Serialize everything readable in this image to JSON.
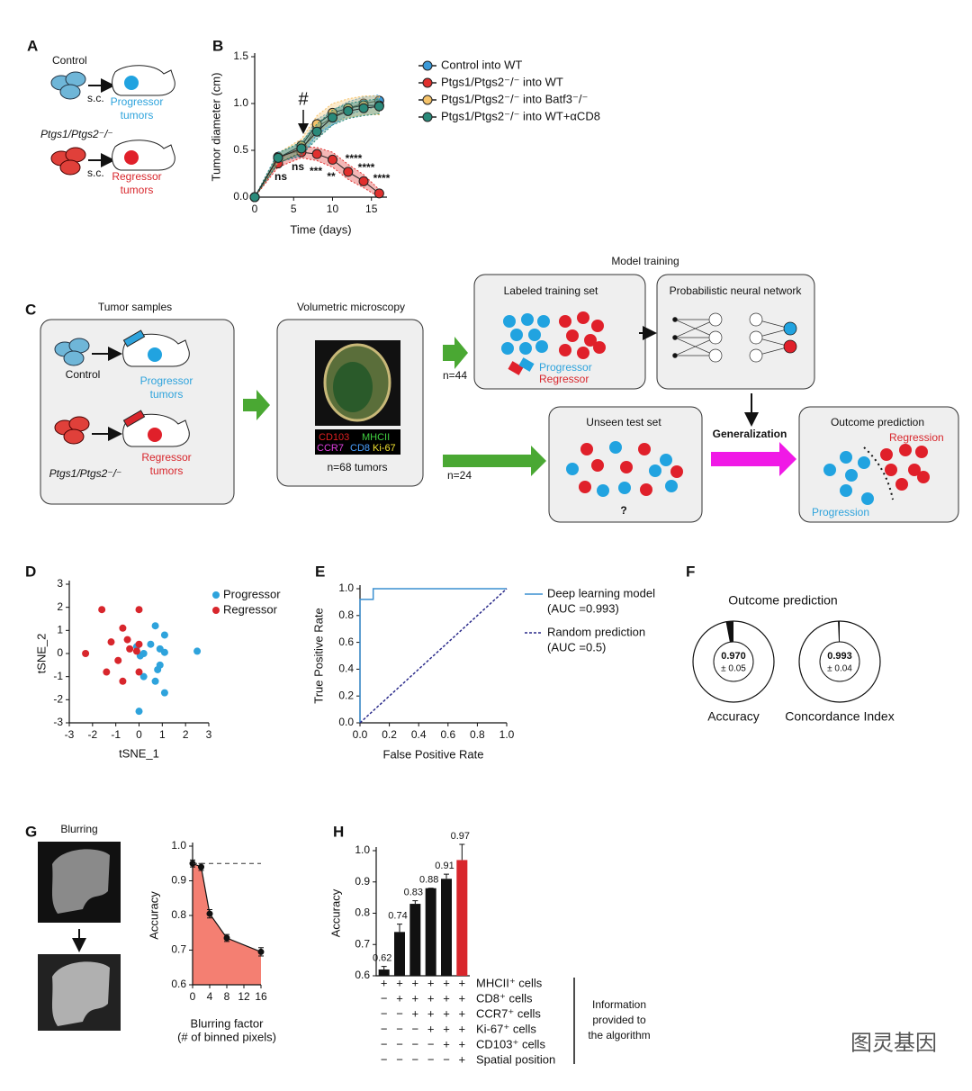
{
  "panel_labels": [
    "A",
    "B",
    "C",
    "D",
    "E",
    "F",
    "G",
    "H"
  ],
  "panel_a": {
    "control": "Control",
    "route_1": "s.c.",
    "progressor": [
      "Progressor",
      "tumors"
    ],
    "knockout": "Ptgs1/Ptgs2⁻/⁻",
    "route_2": "s.c.",
    "regressor": [
      "Regressor",
      "tumors"
    ]
  },
  "panel_c": {
    "tumor_samples": {
      "title": "Tumor samples",
      "control": "Control",
      "progressor": [
        "Progressor",
        "tumors"
      ],
      "knockout": "Ptgs1/Ptgs2⁻/⁻",
      "regressor": [
        "Regressor",
        "tumors"
      ]
    },
    "microscopy": {
      "title": "Volumetric microscopy",
      "markers": [
        "CD103",
        "MHCII",
        "CCR7",
        "CD8",
        "Ki-67"
      ],
      "count": "n=68 tumors"
    },
    "model_training": "Model training",
    "training_set": {
      "title": "Labeled training set",
      "progressor": "Progressor",
      "regressor": "Regressor"
    },
    "network": "Probabilistic neural network",
    "n_train": "n=44",
    "n_test": "n=24",
    "test_set": {
      "title": "Unseen test set",
      "unknown": "?"
    },
    "generalization": "Generalization",
    "outcome": {
      "title": "Outcome prediction",
      "regression": "Regression",
      "progression": "Progression"
    }
  },
  "panel_g": {
    "title": "Blurring"
  },
  "panel_h_table": {
    "rows": [
      {
        "label": "MHCII⁺ cells",
        "signs": [
          "+",
          "+",
          "+",
          "+",
          "+",
          "+"
        ]
      },
      {
        "label": "CD8⁺ cells",
        "signs": [
          "−",
          "+",
          "+",
          "+",
          "+",
          "+"
        ]
      },
      {
        "label": "CCR7⁺ cells",
        "signs": [
          "−",
          "−",
          "+",
          "+",
          "+",
          "+"
        ]
      },
      {
        "label": "Ki-67⁺ cells",
        "signs": [
          "−",
          "−",
          "−",
          "+",
          "+",
          "+"
        ]
      },
      {
        "label": "CD103⁺ cells",
        "signs": [
          "−",
          "−",
          "−",
          "−",
          "+",
          "+"
        ]
      },
      {
        "label": "Spatial position",
        "signs": [
          "−",
          "−",
          "−",
          "−",
          "−",
          "+"
        ]
      }
    ],
    "note": [
      "Information",
      "provided to",
      "the algorithm"
    ]
  },
  "watermark": "图灵基因",
  "chart_data": [
    {
      "type": "line",
      "x_label": "Time (days)",
      "y_label": "Tumor diameter (cm)",
      "x": [
        0,
        3,
        6,
        8,
        10,
        12,
        14,
        16
      ],
      "markers": true,
      "xlim": [
        0,
        17
      ],
      "xticks": [
        0,
        5,
        10,
        15
      ],
      "ylim": [
        0,
        1.5
      ],
      "yticks": [
        {
          "value": 0,
          "label": "0.0"
        },
        0.5,
        {
          "value": 1,
          "label": "1.0"
        },
        1.5
      ],
      "series": [
        {
          "name": "Control into WT",
          "color": "#3a9ad9",
          "values": [
            0,
            0.43,
            0.5,
            0.75,
            0.85,
            0.95,
            1.0,
            1.03
          ],
          "errors": [
            0,
            0.05,
            0.07,
            0.08,
            0.08,
            0.07,
            0.07,
            0.06
          ]
        },
        {
          "name": "Ptgs1/Ptgs2⁻/⁻ into WT",
          "color": "#e0302e",
          "values": [
            0,
            0.36,
            0.48,
            0.46,
            0.4,
            0.27,
            0.17,
            0.04
          ],
          "errors": [
            0,
            0.04,
            0.06,
            0.07,
            0.08,
            0.08,
            0.07,
            0.04
          ]
        },
        {
          "name": "Ptgs1/Ptgs2⁻/⁻ into Batf3⁻/⁻",
          "color": "#f5c36a",
          "values": [
            0,
            0.42,
            0.55,
            0.78,
            0.9,
            0.95,
            0.98,
            0.98
          ],
          "errors": [
            0,
            0.05,
            0.07,
            0.09,
            0.1,
            0.1,
            0.1,
            0.1
          ]
        },
        {
          "name": "Ptgs1/Ptgs2⁻/⁻ into WT+αCD8",
          "color": "#2a8a7a",
          "values": [
            0,
            0.42,
            0.52,
            0.7,
            0.85,
            0.92,
            0.95,
            0.97
          ],
          "errors": [
            0,
            0.05,
            0.07,
            0.08,
            0.08,
            0.08,
            0.08,
            0.08
          ]
        }
      ],
      "annotations": [
        "#",
        "ns",
        "ns",
        "***",
        "**",
        "****",
        "****",
        "****"
      ]
    },
    {
      "type": "scatter",
      "x_label": "tSNE_1",
      "y_label": "tSNE_2",
      "xlim": [
        -3,
        3
      ],
      "xticks": [
        -3,
        -2,
        -1,
        0,
        1,
        2,
        3
      ],
      "ylim": [
        -3,
        3
      ],
      "yticks": [
        -3,
        -2,
        -1,
        0,
        1,
        2,
        3
      ],
      "series": [
        {
          "name": "Progressor",
          "color": "#2ea3dc",
          "x": [
            0.7,
            1.1,
            0.5,
            0.9,
            1.1,
            2.5,
            0.2,
            0.05,
            0.9,
            0.8,
            0.2,
            0.7,
            1.1,
            0,
            -0.1
          ],
          "values": [
            1.2,
            0.8,
            0.4,
            0.2,
            0.05,
            0.1,
            0,
            -0.1,
            -0.5,
            -0.7,
            -1,
            -1.2,
            -1.7,
            -2.5,
            0.3
          ]
        },
        {
          "name": "Regressor",
          "color": "#d8262c",
          "x": [
            -1.6,
            0,
            -0.7,
            -1.2,
            -0.5,
            0,
            -0.4,
            -0.1,
            -2.3,
            -0.9,
            -1.4,
            -0.7,
            0
          ],
          "values": [
            1.9,
            1.9,
            1.1,
            0.5,
            0.6,
            0.4,
            0.2,
            0.1,
            0,
            -0.3,
            -0.8,
            -1.2,
            -0.8
          ]
        }
      ]
    },
    {
      "type": "line",
      "x_label": "False Positive Rate",
      "y_label": "True Positive Rate",
      "xlim": [
        0,
        1
      ],
      "xticks": [
        {
          "value": 0,
          "label": "0.0"
        },
        0.2,
        0.4,
        0.6,
        0.8,
        {
          "value": 1,
          "label": "1.0"
        }
      ],
      "ylim": [
        0,
        1
      ],
      "yticks": [
        {
          "value": 0,
          "label": "0.0"
        },
        0.2,
        0.4,
        0.6,
        0.8,
        {
          "value": 1,
          "label": "1.0"
        }
      ],
      "series": [
        {
          "name": "Deep learning model",
          "color": "#3a8fd0",
          "linestyle": "solid",
          "x": [
            0,
            0,
            0.09,
            0.09,
            1
          ],
          "values": [
            0,
            0.92,
            0.92,
            1,
            1
          ]
        },
        {
          "name": "Random prediction",
          "color": "#2a2a8a",
          "linestyle": "dashed",
          "x": [
            0,
            1
          ],
          "values": [
            0,
            1
          ]
        }
      ],
      "annotations": [
        "(AUC =0.993)",
        "(AUC =0.5)"
      ]
    },
    {
      "type": "donut",
      "title": "Outcome prediction",
      "categories": [
        "Accuracy",
        "Concordance Index"
      ],
      "values": [
        0.97,
        0.993
      ],
      "value_labels": [
        "0.970",
        "0.993"
      ],
      "errors": [
        0.05,
        0.04
      ],
      "error_labels": [
        "± 0.05",
        "± 0.04"
      ]
    },
    {
      "type": "area",
      "x_label": [
        "Blurring factor",
        "(# of binned pixels)"
      ],
      "y_label": "Accuracy",
      "xlim": [
        0,
        16
      ],
      "xticks": [
        0,
        4,
        8,
        12,
        16
      ],
      "ylim": [
        0.6,
        1
      ],
      "yticks": [
        0.6,
        0.7,
        0.8,
        0.9,
        {
          "value": 1,
          "label": "1.0"
        }
      ],
      "reference_line": 0.95,
      "color": "#f47f72",
      "series": [
        {
          "x": [
            0,
            2,
            4,
            8,
            16
          ],
          "values": [
            0.95,
            0.94,
            0.805,
            0.735,
            0.695
          ],
          "errors": [
            0.01,
            0.01,
            0.012,
            0.01,
            0.012
          ]
        }
      ]
    },
    {
      "type": "bar",
      "y_label": "Accuracy",
      "categories": [
        null,
        null,
        null,
        null,
        null,
        null
      ],
      "values": [
        0.62,
        0.74,
        0.83,
        0.88,
        0.91,
        0.97
      ],
      "errors": [
        0.01,
        0.025,
        0.01,
        0,
        0.015,
        0.05
      ],
      "colors": [
        "#111111",
        "#111111",
        "#111111",
        "#111111",
        "#111111",
        "#d8262c"
      ],
      "ylim": [
        0.6,
        1
      ],
      "yticks": [
        0.6,
        0.7,
        0.8,
        0.9,
        {
          "value": 1,
          "label": "1.0"
        }
      ]
    }
  ]
}
